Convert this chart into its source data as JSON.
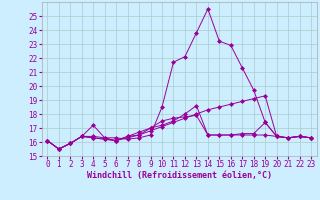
{
  "xlabel": "Windchill (Refroidissement éolien,°C)",
  "background_color": "#cceeff",
  "grid_color": "#aacccc",
  "line_color": "#990099",
  "xlim": [
    -0.5,
    23.5
  ],
  "ylim": [
    15,
    26
  ],
  "yticks": [
    15,
    16,
    17,
    18,
    19,
    20,
    21,
    22,
    23,
    24,
    25
  ],
  "xticks": [
    0,
    1,
    2,
    3,
    4,
    5,
    6,
    7,
    8,
    9,
    10,
    11,
    12,
    13,
    14,
    15,
    16,
    17,
    18,
    19,
    20,
    21,
    22,
    23
  ],
  "series": [
    [
      16.1,
      15.5,
      15.9,
      16.4,
      16.4,
      16.3,
      16.3,
      16.2,
      16.3,
      16.5,
      18.5,
      21.7,
      22.1,
      23.8,
      25.5,
      23.2,
      22.9,
      21.3,
      19.7,
      17.4,
      16.4,
      16.3,
      16.4,
      16.3
    ],
    [
      16.1,
      15.5,
      15.9,
      16.4,
      17.2,
      16.3,
      16.1,
      16.4,
      16.7,
      17.0,
      17.5,
      17.7,
      17.8,
      17.9,
      16.5,
      16.5,
      16.5,
      16.6,
      16.6,
      17.4,
      16.4,
      16.3,
      16.4,
      16.3
    ],
    [
      16.1,
      15.5,
      15.9,
      16.4,
      16.3,
      16.2,
      16.1,
      16.4,
      16.5,
      17.0,
      17.2,
      17.5,
      18.0,
      18.6,
      16.5,
      16.5,
      16.5,
      16.5,
      16.5,
      16.5,
      16.4,
      16.3,
      16.4,
      16.3
    ],
    [
      16.1,
      15.5,
      15.9,
      16.4,
      16.3,
      16.2,
      16.1,
      16.3,
      16.5,
      16.8,
      17.1,
      17.4,
      17.7,
      18.0,
      18.3,
      18.5,
      18.7,
      18.9,
      19.1,
      19.3,
      16.4,
      16.3,
      16.4,
      16.3
    ]
  ],
  "font_size_ticks": 5.5,
  "font_size_xlabel": 6.0,
  "marker": "D",
  "markersize": 2.0
}
